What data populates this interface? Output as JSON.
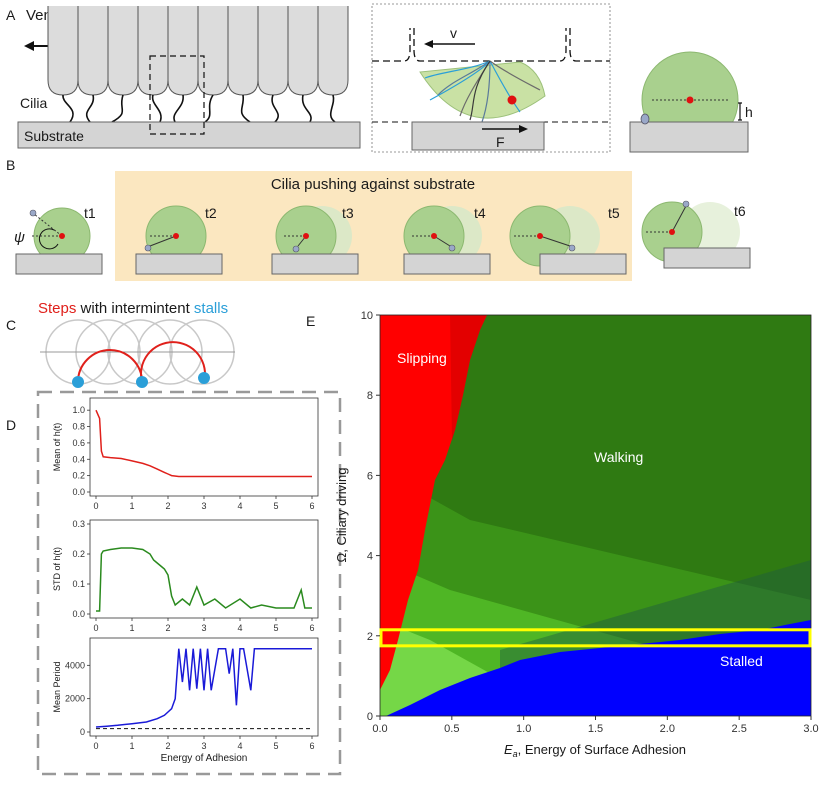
{
  "panels": {
    "A": {
      "letter": "A",
      "title": "Ventral cells",
      "cilia_label": "Cilia",
      "substrate_label": "Substrate",
      "velocity_label": "v",
      "force_label": "F",
      "height_label": "h"
    },
    "B": {
      "letter": "B",
      "banner": "Cilia pushing against substrate",
      "angle_label": "ψ",
      "time_labels": [
        "t1",
        "t2",
        "t3",
        "t4",
        "t5",
        "t6"
      ]
    },
    "C": {
      "letter": "C",
      "title_steps": "Steps",
      "title_mid": " with intermintent ",
      "title_stalls": "stalls"
    },
    "D": {
      "letter": "D"
    },
    "E": {
      "letter": "E"
    }
  },
  "colors": {
    "steps": "#e0201b",
    "stalls": "#2b9fd8",
    "slipping": "#ff0000",
    "walking": "#2f7a12",
    "stalled": "#0000ff",
    "highlight": "#ffff00",
    "banner": "#fbe7c0",
    "cell_green": "#a9d08e"
  },
  "chart_data": [
    {
      "type": "line",
      "ylabel": "Mean of h(t)",
      "xlabel": "",
      "xlim": [
        0,
        6
      ],
      "ylim": [
        0,
        1.1
      ],
      "yticks": [
        "0.0",
        "0.2",
        "0.4",
        "0.6",
        "0.8",
        "1.0"
      ],
      "xticks": [
        "0",
        "1",
        "2",
        "3",
        "4",
        "5",
        "6"
      ],
      "color": "#e0201b",
      "x": [
        0.0,
        0.05,
        0.1,
        0.15,
        0.2,
        0.4,
        0.7,
        1.0,
        1.3,
        1.5,
        1.7,
        1.9,
        2.0,
        2.1,
        2.3,
        3.0,
        4.0,
        5.0,
        6.0
      ],
      "y": [
        1.0,
        0.95,
        0.9,
        0.5,
        0.43,
        0.42,
        0.41,
        0.38,
        0.35,
        0.32,
        0.28,
        0.24,
        0.22,
        0.2,
        0.19,
        0.19,
        0.19,
        0.19,
        0.19
      ]
    },
    {
      "type": "line",
      "ylabel": "STD of h(t)",
      "xlabel": "",
      "xlim": [
        0,
        6
      ],
      "ylim": [
        0,
        0.3
      ],
      "yticks": [
        "0.0",
        "0.1",
        "0.2",
        "0.3"
      ],
      "xticks": [
        "0",
        "1",
        "2",
        "3",
        "4",
        "5",
        "6"
      ],
      "color": "#2a8a1e",
      "x": [
        0.0,
        0.1,
        0.15,
        0.2,
        0.4,
        0.7,
        1.0,
        1.3,
        1.5,
        1.6,
        1.7,
        1.8,
        1.9,
        2.0,
        2.1,
        2.2,
        2.4,
        2.6,
        2.8,
        3.0,
        3.3,
        3.6,
        4.0,
        4.3,
        4.6,
        5.0,
        5.5,
        5.7,
        5.8,
        6.0
      ],
      "y": [
        0.01,
        0.01,
        0.2,
        0.21,
        0.215,
        0.22,
        0.22,
        0.215,
        0.2,
        0.18,
        0.17,
        0.16,
        0.15,
        0.13,
        0.06,
        0.03,
        0.05,
        0.03,
        0.09,
        0.03,
        0.05,
        0.02,
        0.05,
        0.02,
        0.03,
        0.02,
        0.02,
        0.08,
        0.02,
        0.02
      ]
    },
    {
      "type": "line",
      "ylabel": "Mean Period",
      "xlabel": "Energy of Adhesion",
      "xlim": [
        0,
        6
      ],
      "ylim": [
        0,
        5400
      ],
      "yticks": [
        "0",
        "2000",
        "4000"
      ],
      "xticks": [
        "0",
        "1",
        "2",
        "3",
        "4",
        "5",
        "6"
      ],
      "color": "#1a1ad8",
      "baseline": 200,
      "x": [
        0.0,
        0.3,
        0.6,
        1.0,
        1.4,
        1.7,
        1.9,
        2.0,
        2.1,
        2.2,
        2.3,
        2.4,
        2.5,
        2.6,
        2.7,
        2.8,
        2.9,
        3.0,
        3.1,
        3.2,
        3.4,
        3.6,
        3.7,
        3.8,
        3.9,
        4.0,
        4.1,
        4.3,
        4.4,
        4.6,
        5.0,
        6.0
      ],
      "y": [
        300,
        350,
        400,
        500,
        600,
        800,
        1000,
        1200,
        1400,
        2000,
        5000,
        3000,
        5000,
        2500,
        5000,
        2600,
        5000,
        2500,
        5000,
        2500,
        5000,
        5000,
        3500,
        5000,
        1600,
        5000,
        5000,
        2500,
        5000,
        5000,
        5000,
        5000
      ]
    },
    {
      "type": "heatmap",
      "xlabel_symbol": "E",
      "xlabel_sub": "a",
      "xlabel": ", Energy of Surface Adhesion",
      "ylabel": "Ω, Ciliary driving",
      "xlim": [
        0,
        3
      ],
      "ylim": [
        0,
        10
      ],
      "xticks": [
        "0.0",
        "0.5",
        "1.0",
        "1.5",
        "2.0",
        "2.5",
        "3.0"
      ],
      "yticks": [
        "0",
        "2",
        "4",
        "6",
        "8",
        "10"
      ],
      "regions": [
        "Slipping",
        "Walking",
        "Stalled"
      ],
      "highlight_band": [
        1.75,
        2.15
      ]
    }
  ]
}
